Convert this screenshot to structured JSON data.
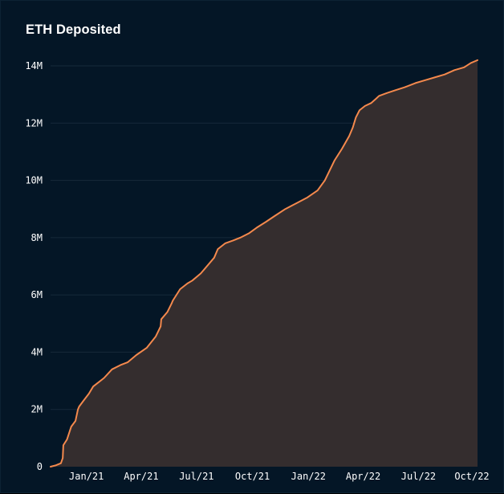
{
  "chart_data": {
    "type": "area",
    "title": "ETH Deposited",
    "xlabel": "",
    "ylabel": "",
    "x_ticks": [
      "Jan/21",
      "Apr/21",
      "Jul/21",
      "Oct/21",
      "Jan/22",
      "Apr/22",
      "Jul/22",
      "Oct/22"
    ],
    "y_ticks": [
      "0",
      "2M",
      "4M",
      "6M",
      "8M",
      "10M",
      "12M",
      "14M"
    ],
    "ylim": [
      0,
      14000000
    ],
    "xlim": [
      "2020-11-03",
      "2022-10-06"
    ],
    "grid": "horizontal",
    "legend": "none",
    "series": [
      {
        "x": [
          "2020-11-03",
          "2020-11-12",
          "2020-11-20",
          "2020-11-23",
          "2020-11-24",
          "2020-11-30",
          "2020-12-07",
          "2020-12-14",
          "2020-12-18",
          "2020-12-20",
          "2020-12-27",
          "2021-01-05",
          "2021-01-12",
          "2021-01-15",
          "2021-01-30",
          "2021-02-12",
          "2021-02-26",
          "2021-03-10",
          "2021-03-24",
          "2021-04-10",
          "2021-04-25",
          "2021-05-03",
          "2021-05-04",
          "2021-05-14",
          "2021-05-21",
          "2021-05-23",
          "2021-06-04",
          "2021-06-16",
          "2021-06-24",
          "2021-07-08",
          "2021-07-20",
          "2021-07-30",
          "2021-08-05",
          "2021-08-17",
          "2021-08-30",
          "2021-09-11",
          "2021-09-25",
          "2021-10-08",
          "2021-10-23",
          "2021-11-06",
          "2021-11-24",
          "2021-12-12",
          "2021-12-30",
          "2022-01-16",
          "2022-01-28",
          "2022-02-13",
          "2022-02-25",
          "2022-03-09",
          "2022-03-15",
          "2022-03-20",
          "2022-03-26",
          "2022-04-04",
          "2022-04-14",
          "2022-04-22",
          "2022-04-27",
          "2022-05-10",
          "2022-05-24",
          "2022-06-08",
          "2022-06-26",
          "2022-07-12",
          "2022-07-28",
          "2022-08-13",
          "2022-08-29",
          "2022-09-14",
          "2022-09-25",
          "2022-10-06"
        ],
        "values": [
          0,
          50000,
          120000,
          300000,
          750000,
          950000,
          1400000,
          1600000,
          2000000,
          2100000,
          2300000,
          2550000,
          2800000,
          2850000,
          3100000,
          3400000,
          3550000,
          3650000,
          3900000,
          4150000,
          4550000,
          4900000,
          5150000,
          5400000,
          5700000,
          5800000,
          6200000,
          6400000,
          6500000,
          6750000,
          7050000,
          7300000,
          7600000,
          7800000,
          7900000,
          8000000,
          8150000,
          8350000,
          8550000,
          8750000,
          9000000,
          9200000,
          9400000,
          9650000,
          10000000,
          10700000,
          11100000,
          11550000,
          11850000,
          12200000,
          12450000,
          12600000,
          12700000,
          12850000,
          12950000,
          13050000,
          13150000,
          13250000,
          13400000,
          13500000,
          13600000,
          13700000,
          13850000,
          13950000,
          14100000,
          14200000
        ]
      }
    ],
    "colors": {
      "line": "#f4894d",
      "fill": "#342d2e",
      "grid": "#16293a",
      "background": "#041626",
      "text": "#ffffff"
    }
  }
}
